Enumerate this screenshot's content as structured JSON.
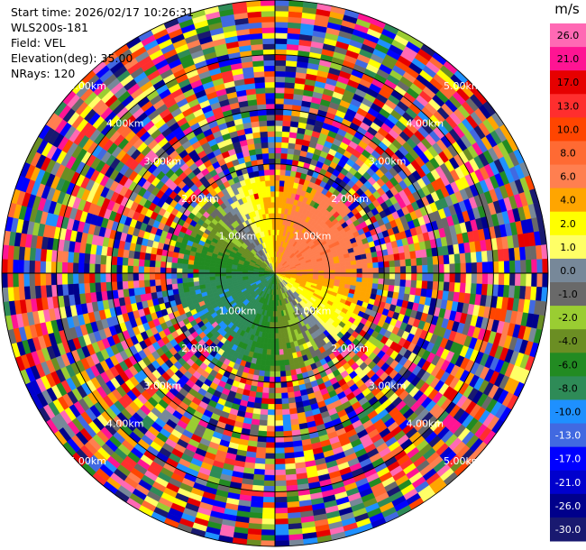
{
  "header": {
    "start_time": "Start time: 2026/02/17 10:26:31",
    "site": "WLS200s-181",
    "field": "Field: VEL",
    "elevation": "Elevation(deg): 35.00",
    "nrays": "NRays: 120"
  },
  "colorbar": {
    "unit": "m/s",
    "labels": [
      "26.0",
      "21.0",
      "17.0",
      "13.0",
      "10.0",
      "8.0",
      "6.0",
      "4.0",
      "2.0",
      "1.0",
      "0.0",
      "-1.0",
      "-2.0",
      "-4.0",
      "-6.0",
      "-8.0",
      "-10.0",
      "-13.0",
      "-17.0",
      "-21.0",
      "-26.0",
      "-30.0"
    ],
    "colors": [
      "#ff69b4",
      "#ff1493",
      "#e60000",
      "#ff2e2e",
      "#ff4500",
      "#ff6a33",
      "#ff7f50",
      "#ffa500",
      "#ffff00",
      "#ffff66",
      "#778899",
      "#696969",
      "#9acd32",
      "#6b8e23",
      "#228b22",
      "#2e8b57",
      "#1e90ff",
      "#4169e1",
      "#0000ff",
      "#0000cd",
      "#00008b",
      "#191970"
    ]
  },
  "chart_data": {
    "type": "ppi",
    "field": "VEL",
    "units": "m/s",
    "nrays": 120,
    "range_unit": "km",
    "max_range_km": 5.0,
    "range_rings_km": [
      1.0,
      2.0,
      3.0,
      4.0,
      5.0
    ],
    "ring_labels": [
      "1.00km",
      "2.00km",
      "3.00km",
      "4.00km",
      "5.00km"
    ],
    "scale_min": -30.0,
    "scale_max": 26.0,
    "valid_data_range_km": 1.75,
    "pattern": "positive (red/orange) toward upper-right, negative (blue) toward lower-left, noise beyond ~1.75 km"
  }
}
